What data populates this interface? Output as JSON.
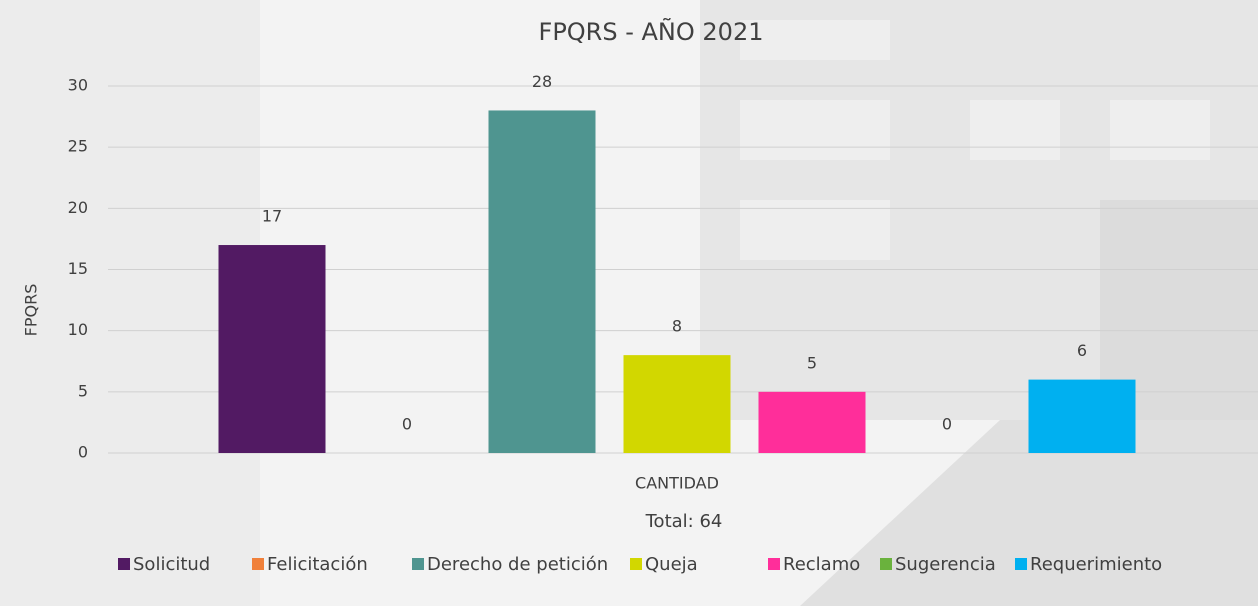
{
  "chart_data": {
    "type": "bar",
    "title": "FPQRS - AÑO 2021",
    "y_label": "FPQRS",
    "categories": [
      "CANTIDAD"
    ],
    "annotation": "Total: 64",
    "series": [
      {
        "name": "Solicitud",
        "color": "#521a63",
        "values": [
          17
        ]
      },
      {
        "name": "Felicitación",
        "color": "#f0803a",
        "values": [
          0
        ]
      },
      {
        "name": "Derecho de petición",
        "color": "#4f9590",
        "values": [
          28
        ]
      },
      {
        "name": "Queja",
        "color": "#d2d700",
        "values": [
          8
        ]
      },
      {
        "name": "Reclamo",
        "color": "#ff2e9a",
        "values": [
          5
        ]
      },
      {
        "name": "Sugerencia",
        "color": "#6ab23d",
        "values": [
          0
        ]
      },
      {
        "name": "Requerimiento",
        "color": "#00b0f0",
        "values": [
          6
        ]
      }
    ],
    "ylim": [
      0,
      30
    ],
    "yticks": [
      0,
      5,
      10,
      15,
      20,
      25,
      30
    ],
    "grid": true,
    "legend": "bottom"
  }
}
